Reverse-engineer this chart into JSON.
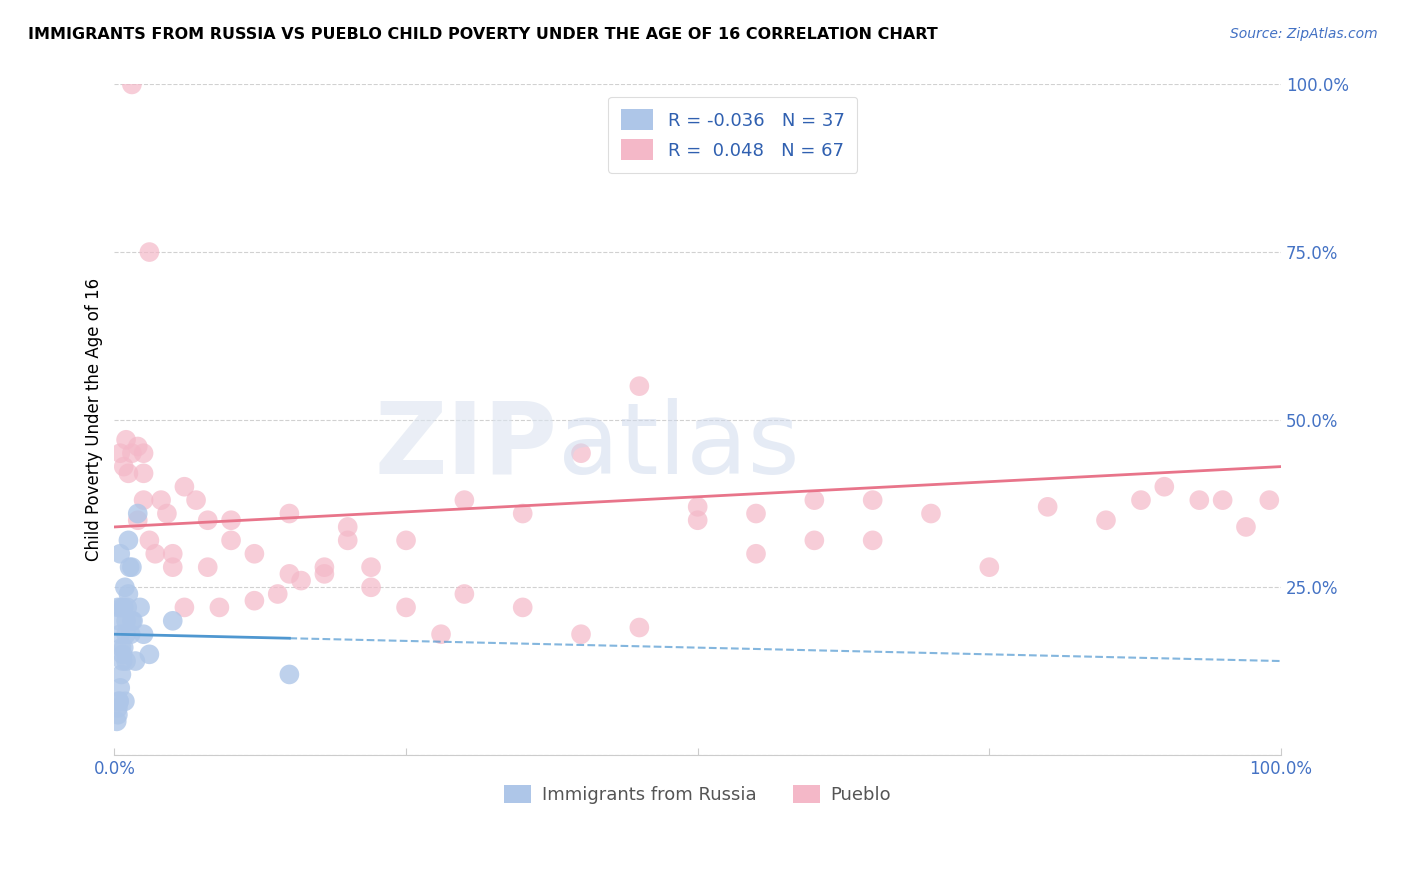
{
  "title": "IMMIGRANTS FROM RUSSIA VS PUEBLO CHILD POVERTY UNDER THE AGE OF 16 CORRELATION CHART",
  "source": "Source: ZipAtlas.com",
  "ylabel": "Child Poverty Under the Age of 16",
  "xlim": [
    0,
    100
  ],
  "ylim": [
    0,
    100
  ],
  "xticklabels": [
    "0.0%",
    "",
    "",
    "",
    "100.0%"
  ],
  "yticklabels_right": [
    "",
    "25.0%",
    "50.0%",
    "75.0%",
    "100.0%"
  ],
  "series1_label": "Immigrants from Russia",
  "series1_color": "#aec6e8",
  "series1_R": "-0.036",
  "series1_N": "37",
  "series2_label": "Pueblo",
  "series2_color": "#f4b8c8",
  "series2_R": "0.048",
  "series2_N": "67",
  "trend_line_color_blue": "#4f97d0",
  "trend_line_color_pink": "#e8748a",
  "legend_color": "#3060b0",
  "blue_x": [
    0.2,
    0.3,
    0.3,
    0.4,
    0.4,
    0.5,
    0.5,
    0.5,
    0.6,
    0.6,
    0.7,
    0.7,
    0.8,
    0.8,
    0.9,
    0.9,
    1.0,
    1.0,
    1.0,
    1.1,
    1.2,
    1.2,
    1.3,
    1.4,
    1.5,
    1.5,
    1.6,
    1.8,
    2.0,
    2.2,
    2.5,
    3.0,
    0.3,
    0.6,
    0.4,
    5.0,
    15.0
  ],
  "blue_y": [
    5,
    7,
    22,
    8,
    20,
    10,
    18,
    30,
    12,
    22,
    14,
    15,
    16,
    22,
    8,
    25,
    18,
    20,
    14,
    22,
    24,
    32,
    28,
    18,
    28,
    20,
    20,
    14,
    36,
    22,
    18,
    15,
    6,
    16,
    8,
    20,
    12
  ],
  "pink_x": [
    0.5,
    0.8,
    1.0,
    1.2,
    1.5,
    1.5,
    2.0,
    2.0,
    2.5,
    2.5,
    2.5,
    3.0,
    3.0,
    3.5,
    4.0,
    4.5,
    5.0,
    5.0,
    6.0,
    6.0,
    7.0,
    8.0,
    8.0,
    9.0,
    10.0,
    10.0,
    12.0,
    12.0,
    14.0,
    15.0,
    15.0,
    16.0,
    18.0,
    18.0,
    20.0,
    20.0,
    22.0,
    22.0,
    25.0,
    25.0,
    28.0,
    30.0,
    30.0,
    35.0,
    35.0,
    40.0,
    40.0,
    45.0,
    45.0,
    50.0,
    50.0,
    55.0,
    55.0,
    60.0,
    60.0,
    65.0,
    65.0,
    70.0,
    75.0,
    80.0,
    85.0,
    88.0,
    90.0,
    93.0,
    95.0,
    97.0,
    99.0
  ],
  "pink_y": [
    45,
    43,
    47,
    42,
    100,
    45,
    35,
    46,
    42,
    38,
    45,
    32,
    75,
    30,
    38,
    36,
    28,
    30,
    40,
    22,
    38,
    35,
    28,
    22,
    35,
    32,
    23,
    30,
    24,
    36,
    27,
    26,
    28,
    27,
    34,
    32,
    25,
    28,
    22,
    32,
    18,
    24,
    38,
    36,
    22,
    45,
    18,
    55,
    19,
    37,
    35,
    30,
    36,
    38,
    32,
    32,
    38,
    36,
    28,
    37,
    35,
    38,
    40,
    38,
    38,
    34,
    38
  ]
}
